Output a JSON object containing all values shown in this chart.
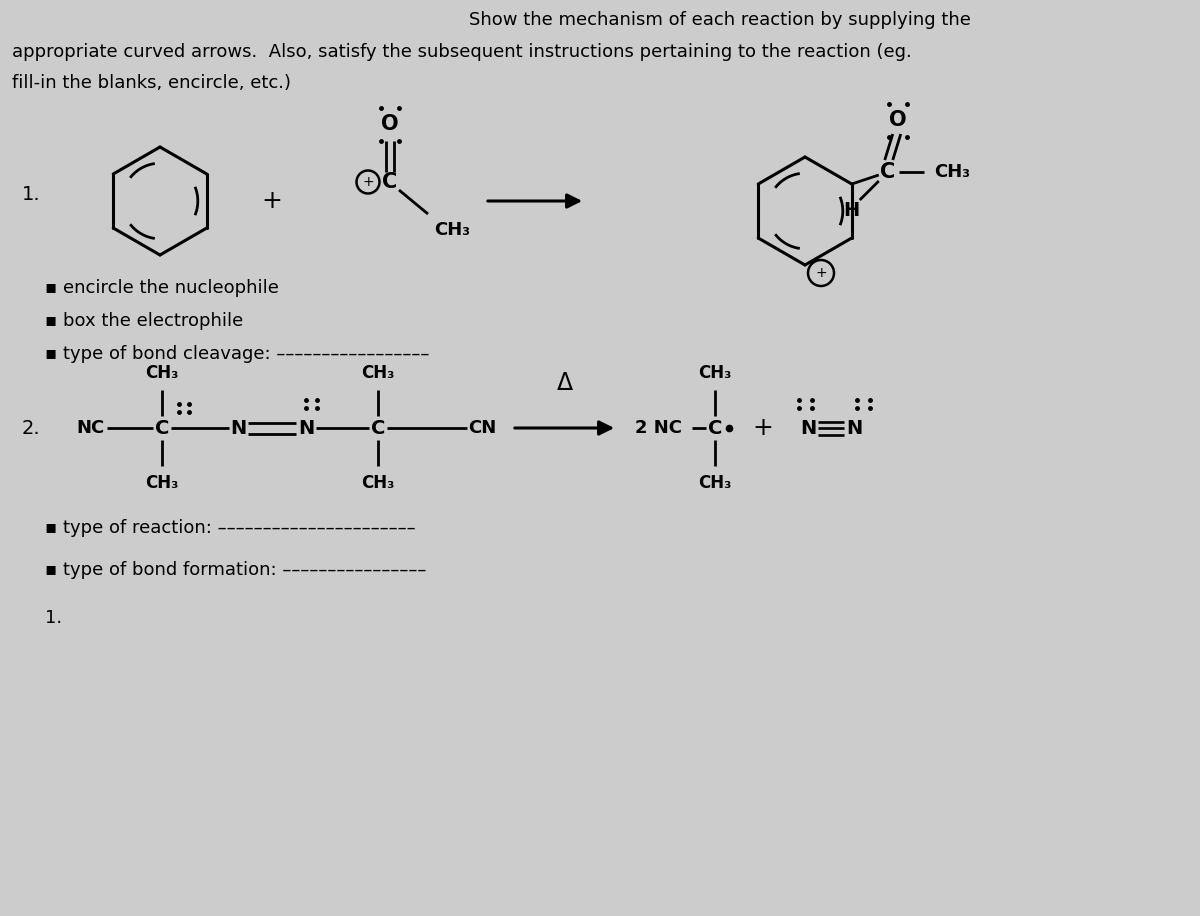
{
  "bg": "#cccccc",
  "header1": "Show the mechanism of each reaction by supplying the",
  "header2": "appropriate curved arrows.  Also, satisfy the subsequent instructions pertaining to the reaction (eg.",
  "header3": "fill-in the blanks, encircle, etc.)",
  "inst1_lines": [
    "▪ encircle the nucleophile",
    "▪ box the electrophile",
    "▪ type of bond cleavage: –––––––––––––––––"
  ],
  "inst2_lines": [
    "▪ type of reaction: ––––––––––––––––––––––",
    "▪ type of bond formation: ––––––––––––––––"
  ]
}
